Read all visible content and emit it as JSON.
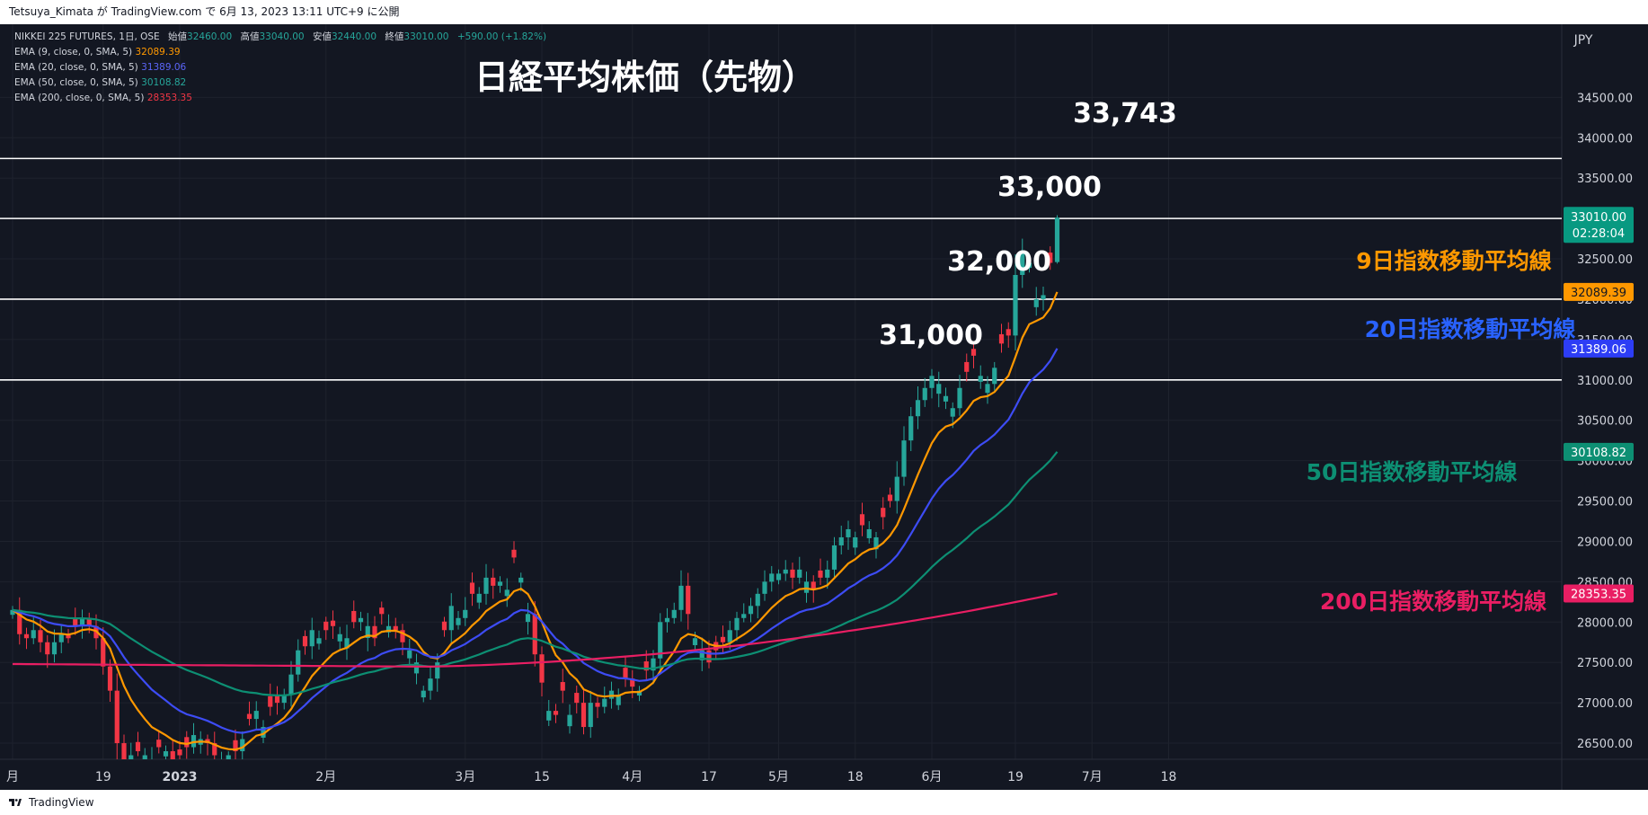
{
  "publisher_line": "Tetsuya_Kimata が TradingView.com で 6月 13, 2023 13:11 UTC+9 に公開",
  "footer": {
    "brand": "TradingView"
  },
  "legend": {
    "symbol_line": {
      "symbol": "NIKKEI 225 FUTURES, 1日, OSE",
      "open_label": "始値",
      "open": "32460.00",
      "high_label": "高値",
      "high": "33040.00",
      "low_label": "安値",
      "low": "32440.00",
      "close_label": "終値",
      "close": "33010.00",
      "change": "+590.00 (+1.82%)"
    },
    "ema_rows": [
      {
        "label": "EMA (9, close, 0, SMA, 5)",
        "value": "32089.39",
        "color": "#ff9800"
      },
      {
        "label": "EMA (20, close, 0, SMA, 5)",
        "value": "31389.06",
        "color": "#3d4cf5"
      },
      {
        "label": "EMA (50, close, 0, SMA, 5)",
        "value": "30108.82",
        "color": "#0d8f73"
      },
      {
        "label": "EMA (200, close, 0, SMA, 5)",
        "value": "28353.35",
        "color": "#e91e63"
      }
    ]
  },
  "chart_data": {
    "type": "candlestick",
    "title": "日経平均株価（先物）",
    "currency": "JPY",
    "y_range": [
      26300,
      35250
    ],
    "y_ticks": [
      26500,
      27000,
      27500,
      28000,
      28500,
      29000,
      29500,
      30000,
      30500,
      31000,
      31500,
      32000,
      32500,
      33000,
      33500,
      34000,
      34500
    ],
    "y_tick_labels": [
      "26500.00",
      "27000.00",
      "27500.00",
      "28000.00",
      "28500.00",
      "29000.00",
      "29500.00",
      "30000.00",
      "30500.00",
      "31000.00",
      "31500.00",
      "32000.00",
      "32500.00",
      "33000.00",
      "33500.00",
      "34000.00",
      "34500.00"
    ],
    "x_ticks": [
      {
        "label": "月",
        "index": 0
      },
      {
        "label": "19",
        "index": 13
      },
      {
        "label": "2023",
        "index": 24
      },
      {
        "label": "2月",
        "index": 45
      },
      {
        "label": "3月",
        "index": 65
      },
      {
        "label": "15",
        "index": 76
      },
      {
        "label": "4月",
        "index": 89
      },
      {
        "label": "17",
        "index": 100
      },
      {
        "label": "5月",
        "index": 110
      },
      {
        "label": "18",
        "index": 121
      },
      {
        "label": "6月",
        "index": 132
      },
      {
        "label": "19",
        "index": 144
      },
      {
        "label": "7月",
        "index": 155
      },
      {
        "label": "18",
        "index": 166
      }
    ],
    "horizontal_lines": [
      {
        "value": 33743,
        "label": "33,743"
      },
      {
        "value": 33000,
        "label": "33,000"
      },
      {
        "value": 32000,
        "label": "32,000"
      },
      {
        "value": 31000,
        "label": "31,000"
      }
    ],
    "closes": [
      28150,
      27850,
      27800,
      27900,
      27750,
      27600,
      27750,
      27850,
      27800,
      27950,
      28050,
      27950,
      27800,
      27450,
      27150,
      26500,
      26300,
      26350,
      26400,
      26350,
      26300,
      26450,
      26400,
      26300,
      26350,
      26450,
      26600,
      26550,
      26500,
      26350,
      26300,
      26350,
      26400,
      26550,
      26800,
      26900,
      26700,
      26950,
      27000,
      27100,
      27350,
      27650,
      27700,
      27900,
      27800,
      27900,
      27950,
      27850,
      27800,
      28000,
      28050,
      27950,
      27800,
      28100,
      27950,
      27900,
      27750,
      27650,
      27500,
      27150,
      27300,
      27500,
      27900,
      28200,
      28050,
      28150,
      28350,
      28350,
      28550,
      28450,
      28500,
      28400,
      28800,
      28550,
      28100,
      27600,
      27250,
      26900,
      26850,
      27150,
      26850,
      27000,
      26700,
      27000,
      26950,
      27050,
      27150,
      27100,
      27300,
      27200,
      27150,
      27400,
      27550,
      28000,
      28050,
      28150,
      28450,
      28100,
      27800,
      27650,
      27500,
      27650,
      27750,
      27900,
      28050,
      28100,
      28200,
      28350,
      28500,
      28600,
      28600,
      28650,
      28550,
      28650,
      28500,
      28400,
      28550,
      28650,
      28950,
      29050,
      29150,
      29050,
      29200,
      29150,
      29050,
      29300,
      29500,
      29800,
      30250,
      30550,
      30750,
      30900,
      31050,
      30950,
      30800,
      30650,
      30900,
      31100,
      31300,
      31050,
      30950,
      31150,
      31450,
      31550,
      32300,
      32600,
      32450,
      32000,
      32050,
      32450,
      33010
    ],
    "bar_dirs": "uddudduuddudddddduduududdduudduududuudduuuduudduuduuddudduuuuuduuuduuduuduudduddudduduuudduduuuuuduuddduuuuuuuuuduudduuuuuduudduuuuuuuuuudduuudduuuuudduuu",
    "ema": [
      {
        "name": "9日指数移動平均線",
        "period": 9,
        "color": "#ff9800",
        "last": 32089.39,
        "last_label": "32089.39"
      },
      {
        "name": "20日指数移動平均線",
        "period": 20,
        "color": "#3d4cf5",
        "last": 31389.06,
        "last_label": "31389.06"
      },
      {
        "name": "50日指数移動平均線",
        "period": 50,
        "color": "#0d8f73",
        "last": 30108.82,
        "last_label": "30108.82"
      },
      {
        "name": "200日指数移動平均線",
        "period": 200,
        "color": "#e91e63",
        "last": 28353.35,
        "last_label": "28353.35"
      }
    ],
    "price_tag": {
      "value": 33010.0,
      "label": "33010.00",
      "countdown": "02:28:04"
    },
    "annotations": [
      {
        "text": "9日指数移動平均線",
        "color": "#ff9800"
      },
      {
        "text": "20日指数移動平均線",
        "color": "#2962ff"
      },
      {
        "text": "50日指数移動平均線",
        "color": "#0d8f73"
      },
      {
        "text": "200日指数移動平均線",
        "color": "#e91e63"
      }
    ]
  },
  "colors": {
    "up": "#26a69a",
    "down": "#f23645",
    "background": "#131722",
    "grid": "#1e222d"
  }
}
